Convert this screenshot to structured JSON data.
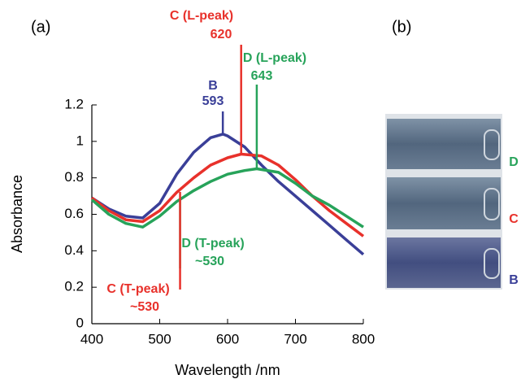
{
  "chart_data": {
    "type": "line",
    "panel_labels": [
      "(a)",
      "(b)"
    ],
    "x_label": "Wavelength /nm",
    "y_label": "Absorbance",
    "xlim": [
      400,
      800
    ],
    "xticks": [
      400,
      500,
      600,
      700,
      800
    ],
    "ylim": [
      0,
      1.2
    ],
    "yticks": [
      0,
      0.2,
      0.4,
      0.6,
      0.8,
      1,
      1.2
    ],
    "series": [
      {
        "name": "B",
        "color": "#3a3f98",
        "x": [
          400,
          425,
          450,
          475,
          500,
          525,
          550,
          575,
          593,
          600,
          625,
          650,
          675,
          700,
          725,
          750,
          775,
          800
        ],
        "values": [
          0.69,
          0.63,
          0.59,
          0.58,
          0.66,
          0.82,
          0.94,
          1.02,
          1.04,
          1.03,
          0.97,
          0.87,
          0.78,
          0.7,
          0.62,
          0.54,
          0.46,
          0.38
        ]
      },
      {
        "name": "C",
        "color": "#e8312b",
        "x": [
          400,
          425,
          450,
          475,
          500,
          525,
          550,
          575,
          600,
          620,
          650,
          675,
          700,
          725,
          750,
          775,
          800
        ],
        "values": [
          0.69,
          0.62,
          0.57,
          0.56,
          0.62,
          0.72,
          0.8,
          0.87,
          0.91,
          0.93,
          0.92,
          0.87,
          0.79,
          0.7,
          0.62,
          0.55,
          0.48
        ]
      },
      {
        "name": "D",
        "color": "#27a35a",
        "x": [
          400,
          425,
          450,
          475,
          500,
          525,
          550,
          575,
          600,
          625,
          643,
          675,
          700,
          725,
          750,
          775,
          800
        ],
        "values": [
          0.68,
          0.6,
          0.55,
          0.53,
          0.59,
          0.67,
          0.73,
          0.78,
          0.82,
          0.84,
          0.85,
          0.83,
          0.77,
          0.7,
          0.65,
          0.59,
          0.53
        ]
      }
    ],
    "annotations": [
      {
        "name": "B",
        "x": 593,
        "color": "#3a3f98"
      },
      {
        "name": "C (L-peak)",
        "x": 620,
        "color": "#e8312b"
      },
      {
        "name": "D (L-peak)",
        "x": 643,
        "color": "#27a35a"
      },
      {
        "name": "D (T-peak)",
        "x": {
          "value": 530,
          "label": "~530"
        },
        "color": "#27a35a"
      },
      {
        "name": "C (T-peak)",
        "x": {
          "value": 530,
          "label": "~530"
        },
        "color": "#e8312b"
      }
    ],
    "photo_labels": [
      {
        "name": "D",
        "color": "#27a35a"
      },
      {
        "name": "C",
        "color": "#e8312b"
      },
      {
        "name": "B",
        "color": "#3a3f98"
      }
    ]
  }
}
